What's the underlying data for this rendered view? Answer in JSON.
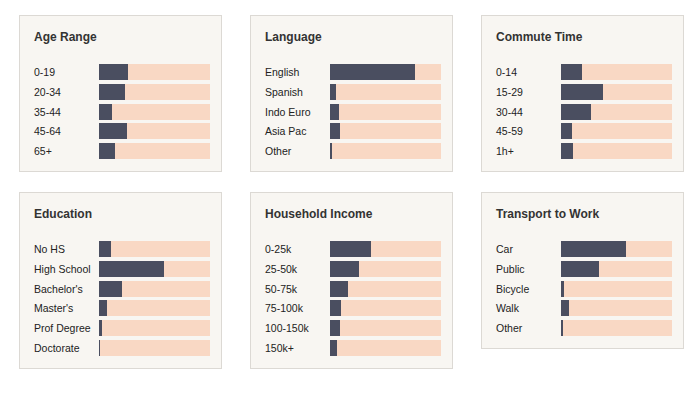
{
  "chart_data": [
    {
      "type": "bar",
      "orientation": "horizontal",
      "title": "Age Range",
      "categories": [
        "0-19",
        "20-34",
        "35-44",
        "45-64",
        "65+"
      ],
      "values": [
        26,
        23,
        12,
        25,
        14
      ],
      "color": "#4a4e60",
      "xlim": [
        0,
        100
      ],
      "tick_labels": false,
      "grid": false
    },
    {
      "type": "bar",
      "orientation": "horizontal",
      "title": "Language",
      "categories": [
        "English",
        "Spanish",
        "Indo Euro",
        "Asia Pac",
        "Other"
      ],
      "values": [
        77,
        5,
        8,
        9,
        2
      ],
      "color": "#4a4e60",
      "xlim": [
        0,
        100
      ],
      "tick_labels": false,
      "grid": false
    },
    {
      "type": "bar",
      "orientation": "horizontal",
      "title": "Commute Time",
      "categories": [
        "0-14",
        "15-29",
        "30-44",
        "45-59",
        "1h+"
      ],
      "values": [
        19,
        38,
        27,
        10,
        11
      ],
      "color": "#4a4e60",
      "xlim": [
        0,
        100
      ],
      "tick_labels": false,
      "grid": false
    },
    {
      "type": "bar",
      "orientation": "horizontal",
      "title": "Education",
      "categories": [
        "No HS",
        "High School",
        "Bachelor's",
        "Master's",
        "Prof Degree",
        "Doctorate"
      ],
      "values": [
        11,
        59,
        21,
        7,
        3,
        1
      ],
      "color": "#4a4e60",
      "xlim": [
        0,
        100
      ],
      "tick_labels": false,
      "grid": false
    },
    {
      "type": "bar",
      "orientation": "horizontal",
      "title": "Household Income",
      "categories": [
        "0-25k",
        "25-50k",
        "50-75k",
        "75-100k",
        "100-150k",
        "150k+"
      ],
      "values": [
        37,
        26,
        16,
        10,
        9,
        6
      ],
      "color": "#4a4e60",
      "xlim": [
        0,
        100
      ],
      "tick_labels": false,
      "grid": false
    },
    {
      "type": "bar",
      "orientation": "horizontal",
      "title": "Transport to Work",
      "categories": [
        "Car",
        "Public",
        "Bicycle",
        "Walk",
        "Other"
      ],
      "values": [
        59,
        34,
        3,
        7,
        2
      ],
      "color": "#4a4e60",
      "xlim": [
        0,
        100
      ],
      "tick_labels": false,
      "grid": false
    }
  ]
}
